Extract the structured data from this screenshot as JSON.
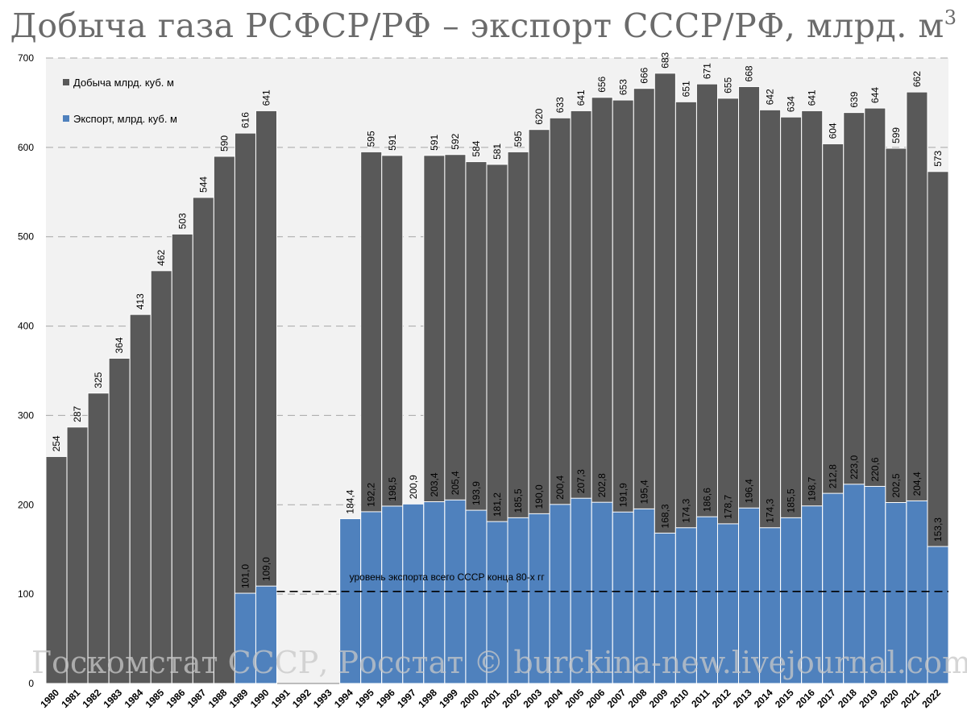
{
  "chart_data": {
    "type": "bar",
    "title_main": "Добыча газа РСФСР/РФ – экспорт СССР/РФ, млрд. м",
    "title_sup": "3",
    "xlabel": "",
    "ylabel": "",
    "ylim": [
      0,
      700
    ],
    "yticks": [
      0,
      100,
      200,
      300,
      400,
      500,
      600,
      700
    ],
    "grid": true,
    "legend_position": "top-left",
    "categories": [
      "1980",
      "1981",
      "1982",
      "1983",
      "1984",
      "1985",
      "1986",
      "1987",
      "1988",
      "1989",
      "1990",
      "1991",
      "1992",
      "1993",
      "1994",
      "1995",
      "1996",
      "1997",
      "1998",
      "1999",
      "2000",
      "2001",
      "2002",
      "2003",
      "2004",
      "2005",
      "2006",
      "2007",
      "2008",
      "2009",
      "2010",
      "2011",
      "2012",
      "2013",
      "2014",
      "2015",
      "2016",
      "2017",
      "2018",
      "2019",
      "2020",
      "2021",
      "2022"
    ],
    "series": [
      {
        "name": "Добыча млрд. куб. м",
        "color": "#595959",
        "values": [
          254,
          287,
          325,
          364,
          413,
          462,
          503,
          544,
          590,
          616,
          641,
          null,
          null,
          null,
          null,
          595,
          591,
          null,
          591,
          592,
          584,
          581,
          595,
          620,
          633,
          641,
          656,
          653,
          666,
          683,
          651,
          671,
          655,
          668,
          642,
          634,
          641,
          604,
          639,
          644,
          599,
          662,
          573
        ],
        "labels": [
          "254",
          "287",
          "325",
          "364",
          "413",
          "462",
          "503",
          "544",
          "590",
          "616",
          "641",
          "",
          "",
          "",
          "",
          "595",
          "591",
          "",
          "591",
          "592",
          "584",
          "581",
          "595",
          "620",
          "633",
          "641",
          "656",
          "653",
          "666",
          "683",
          "651",
          "671",
          "655",
          "668",
          "642",
          "634",
          "641",
          "604",
          "639",
          "644",
          "599",
          "662",
          "573"
        ]
      },
      {
        "name": "Экспорт,  млрд. куб. м",
        "color": "#4f81bd",
        "values": [
          null,
          null,
          null,
          null,
          null,
          null,
          null,
          null,
          null,
          101.0,
          109.0,
          null,
          null,
          null,
          184.4,
          192.2,
          198.5,
          200.9,
          203.4,
          205.4,
          193.9,
          181.2,
          185.5,
          190.0,
          200.4,
          207.3,
          202.8,
          191.9,
          195.4,
          168.3,
          174.3,
          186.6,
          178.7,
          196.4,
          174.3,
          185.5,
          198.7,
          212.8,
          223.0,
          220.6,
          202.5,
          204.4,
          153.3
        ],
        "labels": [
          "",
          "",
          "",
          "",
          "",
          "",
          "",
          "",
          "",
          "101,0",
          "109,0",
          "",
          "",
          "",
          "184,4",
          "192,2",
          "198,5",
          "200,9",
          "203,4",
          "205,4",
          "193,9",
          "181,2",
          "185,5",
          "190,0",
          "200,4",
          "207,3",
          "202,8",
          "191,9",
          "195,4",
          "168,3",
          "174,3",
          "186,6",
          "178,7",
          "196,4",
          "174,3",
          "185,5",
          "198,7",
          "212,8",
          "223,0",
          "220,6",
          "202,5",
          "204,4",
          "153,3"
        ]
      }
    ],
    "reference_line": {
      "value": 103,
      "label": "уровень экспорта всего СССР конца 80-х гг"
    },
    "watermark": "Госкомстат СССР, Росстат © burckina-new.livejournal.com",
    "colors": {
      "plot_background": "#f2f2f2",
      "gridline": "#a6a6a6",
      "production": "#595959",
      "export": "#4f81bd"
    }
  }
}
